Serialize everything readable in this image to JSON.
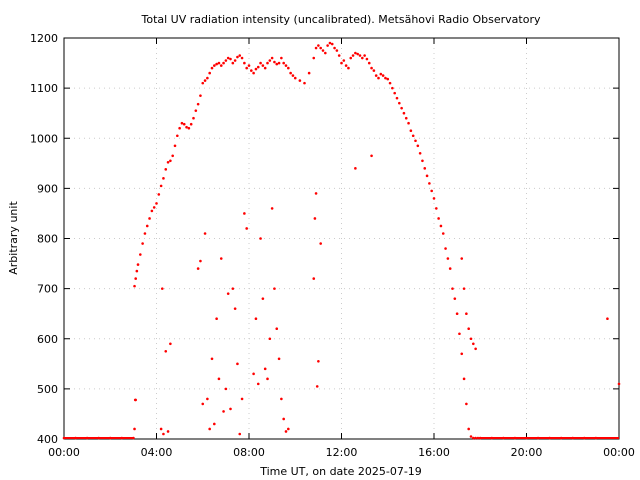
{
  "chart_data": {
    "type": "scatter",
    "title": "Total UV radiation intensity (uncalibrated). Metsähovi Radio Observatory",
    "xlabel": "Time UT, on date 2025-07-19",
    "ylabel": "Arbitrary unit",
    "xlim": [
      0,
      24
    ],
    "ylim": [
      400,
      1200
    ],
    "x_ticks": [
      {
        "value": 0,
        "label": "00:00"
      },
      {
        "value": 4,
        "label": "04:00"
      },
      {
        "value": 8,
        "label": "08:00"
      },
      {
        "value": 12,
        "label": "12:00"
      },
      {
        "value": 16,
        "label": "16:00"
      },
      {
        "value": 20,
        "label": "20:00"
      },
      {
        "value": 24,
        "label": "00:00"
      }
    ],
    "y_ticks": [
      400,
      500,
      600,
      700,
      800,
      900,
      1000,
      1100,
      1200
    ],
    "grid": true,
    "legend": "none",
    "point_color": "#ff0000",
    "series": [
      {
        "values_note": "",
        "x": [
          0.0,
          0.5,
          1.0,
          1.5,
          2.0,
          2.5,
          3.0,
          3.05,
          3.1,
          3.15,
          3.2,
          3.3,
          3.4,
          3.5,
          3.6,
          3.7,
          3.8,
          3.9,
          4.0,
          4.1,
          4.2,
          4.3,
          4.4,
          4.5,
          4.6,
          4.7,
          4.8,
          4.9,
          5.0,
          5.1,
          5.2,
          5.3,
          5.4,
          5.5,
          5.6,
          5.7,
          5.8,
          5.9,
          6.0,
          6.1,
          6.2,
          6.3,
          6.4,
          6.5,
          6.6,
          6.7,
          6.8,
          6.9,
          7.0,
          7.1,
          7.2,
          7.3,
          7.4,
          7.5,
          7.6,
          7.7,
          7.8,
          7.9,
          8.0,
          8.1,
          8.2,
          8.3,
          8.4,
          8.5,
          8.6,
          8.7,
          8.8,
          8.9,
          9.0,
          9.1,
          9.2,
          9.3,
          9.4,
          9.5,
          9.6,
          9.7,
          9.8,
          9.9,
          10.0,
          10.2,
          10.4,
          10.6,
          10.8,
          10.9,
          11.0,
          11.1,
          11.2,
          11.3,
          11.4,
          11.5,
          11.6,
          11.7,
          11.8,
          11.9,
          12.0,
          12.1,
          12.2,
          12.3,
          12.4,
          12.5,
          12.6,
          12.7,
          12.8,
          12.9,
          13.0,
          13.1,
          13.2,
          13.3,
          13.4,
          13.5,
          13.6,
          13.7,
          13.8,
          13.9,
          14.0,
          14.1,
          14.2,
          14.3,
          14.4,
          14.5,
          14.6,
          14.7,
          14.8,
          14.9,
          15.0,
          15.1,
          15.2,
          15.3,
          15.4,
          15.5,
          15.6,
          15.7,
          15.8,
          15.9,
          16.0,
          16.1,
          16.2,
          16.3,
          16.4,
          16.5,
          16.6,
          16.7,
          16.8,
          16.9,
          17.0,
          17.1,
          17.2,
          17.3,
          17.4,
          17.5,
          17.6,
          17.7,
          17.8,
          17.9,
          18.0,
          18.5,
          19.0,
          19.5,
          20.0,
          20.5,
          21.0,
          21.5,
          22.0,
          22.5,
          23.0,
          23.5,
          24.0,
          3.05,
          3.08,
          3.1,
          4.25,
          4.3,
          4.5,
          4.2,
          4.6,
          4.4,
          5.8,
          5.9,
          6.0,
          6.1,
          6.2,
          6.3,
          6.4,
          6.5,
          6.6,
          6.7,
          6.8,
          6.9,
          7.0,
          7.1,
          7.2,
          7.3,
          7.4,
          7.5,
          7.6,
          7.7,
          7.8,
          7.9,
          8.2,
          8.3,
          8.4,
          8.5,
          8.6,
          8.7,
          8.8,
          8.9,
          9.0,
          9.1,
          9.2,
          9.3,
          9.4,
          9.5,
          9.6,
          9.7,
          10.8,
          10.85,
          10.9,
          10.95,
          11.0,
          11.1,
          12.6,
          13.3,
          17.2,
          17.3,
          17.4,
          17.5,
          17.6,
          17.7,
          17.8
        ],
        "y": [
          402,
          402,
          402,
          402,
          402,
          402,
          402,
          705,
          720,
          735,
          748,
          768,
          790,
          810,
          825,
          840,
          855,
          862,
          870,
          888,
          905,
          920,
          938,
          952,
          955,
          965,
          985,
          1005,
          1020,
          1030,
          1028,
          1022,
          1020,
          1028,
          1040,
          1055,
          1068,
          1085,
          1110,
          1115,
          1120,
          1130,
          1140,
          1145,
          1148,
          1150,
          1145,
          1150,
          1155,
          1160,
          1158,
          1150,
          1155,
          1162,
          1165,
          1160,
          1150,
          1140,
          1145,
          1135,
          1130,
          1138,
          1142,
          1150,
          1145,
          1140,
          1150,
          1155,
          1160,
          1152,
          1148,
          1150,
          1160,
          1150,
          1145,
          1140,
          1130,
          1125,
          1120,
          1115,
          1110,
          1130,
          1160,
          1180,
          1185,
          1180,
          1175,
          1170,
          1185,
          1190,
          1188,
          1180,
          1175,
          1165,
          1150,
          1155,
          1145,
          1140,
          1160,
          1165,
          1170,
          1168,
          1165,
          1160,
          1165,
          1158,
          1150,
          1140,
          1135,
          1125,
          1120,
          1128,
          1125,
          1120,
          1118,
          1110,
          1100,
          1090,
          1080,
          1070,
          1060,
          1050,
          1040,
          1030,
          1015,
          1005,
          995,
          985,
          970,
          955,
          940,
          925,
          910,
          895,
          880,
          860,
          840,
          825,
          810,
          780,
          760,
          740,
          700,
          680,
          650,
          610,
          570,
          520,
          470,
          420,
          405,
          402,
          402,
          402,
          402,
          402,
          402,
          402,
          402,
          402,
          402,
          402,
          402,
          402,
          402,
          640,
          510,
          420,
          478,
          478,
          700,
          410,
          415,
          420,
          590,
          575,
          740,
          755,
          470,
          810,
          480,
          420,
          560,
          430,
          640,
          520,
          760,
          455,
          500,
          690,
          460,
          700,
          660,
          550,
          410,
          480,
          850,
          820,
          530,
          640,
          510,
          800,
          680,
          540,
          520,
          600,
          860,
          700,
          620,
          560,
          480,
          440,
          415,
          420,
          720,
          840,
          890,
          505,
          555,
          790,
          940,
          965,
          760,
          700,
          650,
          620,
          600,
          590,
          580
        ]
      }
    ]
  }
}
